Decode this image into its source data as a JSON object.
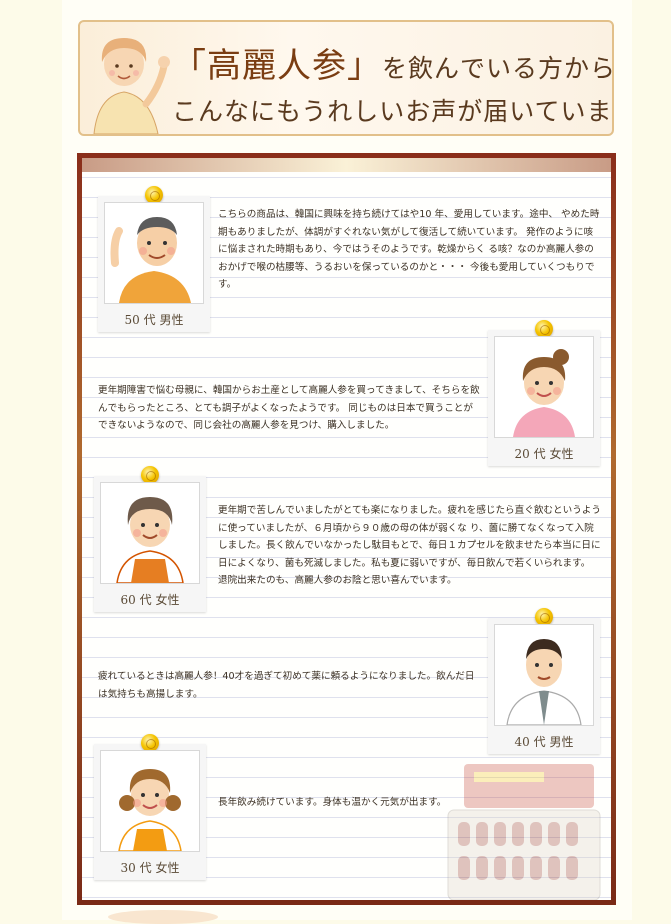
{
  "header": {
    "line1_brand": "「高麗人参」",
    "line1_rest": "を飲んでいる方から",
    "line2": "こんなにもうれしいお声が届いています"
  },
  "testimonials": [
    {
      "text": "こちらの商品は、韓国に興味を持ち続けてはや10 年、愛用しています。途中、 やめた時期もありましたが、体調がすぐれない気がして復活して続いています。 発作のように咳に悩まされた時期もあり、今ではうそのようです。乾燥からく る咳？なのか高麗人参のおかげで喉の枯腰等、うるおいを保っているのかと・・・ 今後も愛用していくつもりです。",
      "caption": "50 代 男性"
    },
    {
      "text": "更年期障害で悩む母親に、韓国からお土産として高麗人参を買ってきまして、そちらを飲んでもらったところ、とても調子がよくなったようです。 同じものは日本で買うことができないようなので、同じ会社の高麗人参を見つけ、購入しました。",
      "caption": "20 代 女性"
    },
    {
      "text": "更年期で苦しんでいましたがとても楽になりました。疲れを感じたら直ぐ飲むというように使っていましたが、６月頃から９０歳の母の体が弱くな り、薗に勝てなくなって入院しました。長く飲んでいなかったし駄目もとで、毎日１カプセルを飲ませたら本当に日に日によくなり、菌も死滅しました。私も夏に弱いですが、毎日飲んで若くいられます。 退院出来たのも、高麗人参のお陰と思い喜んでいます。",
      "caption": "60 代 女性"
    },
    {
      "text": "疲れているときは高麗人参！40才を過ぎて初めて薬に頼るようになりました。飲んだ日は気持ちも高揚します。",
      "caption": "40 代 男性"
    },
    {
      "text": "長年飲み続けています。身体も温かく元気が出ます。",
      "caption": "30 代 女性"
    }
  ],
  "colors": {
    "frame": "#8a3a1e",
    "banner_border": "#e2c08a",
    "banner_text": "#5a3a1f",
    "pin": "#f5c400"
  },
  "icons": [
    "woman-waving-icon",
    "pushpin-icon",
    "man-waving-avatar",
    "young-woman-avatar",
    "older-woman-avatar",
    "doctor-man-avatar",
    "woman-pigtails-avatar",
    "ginseng-product-box-image"
  ]
}
